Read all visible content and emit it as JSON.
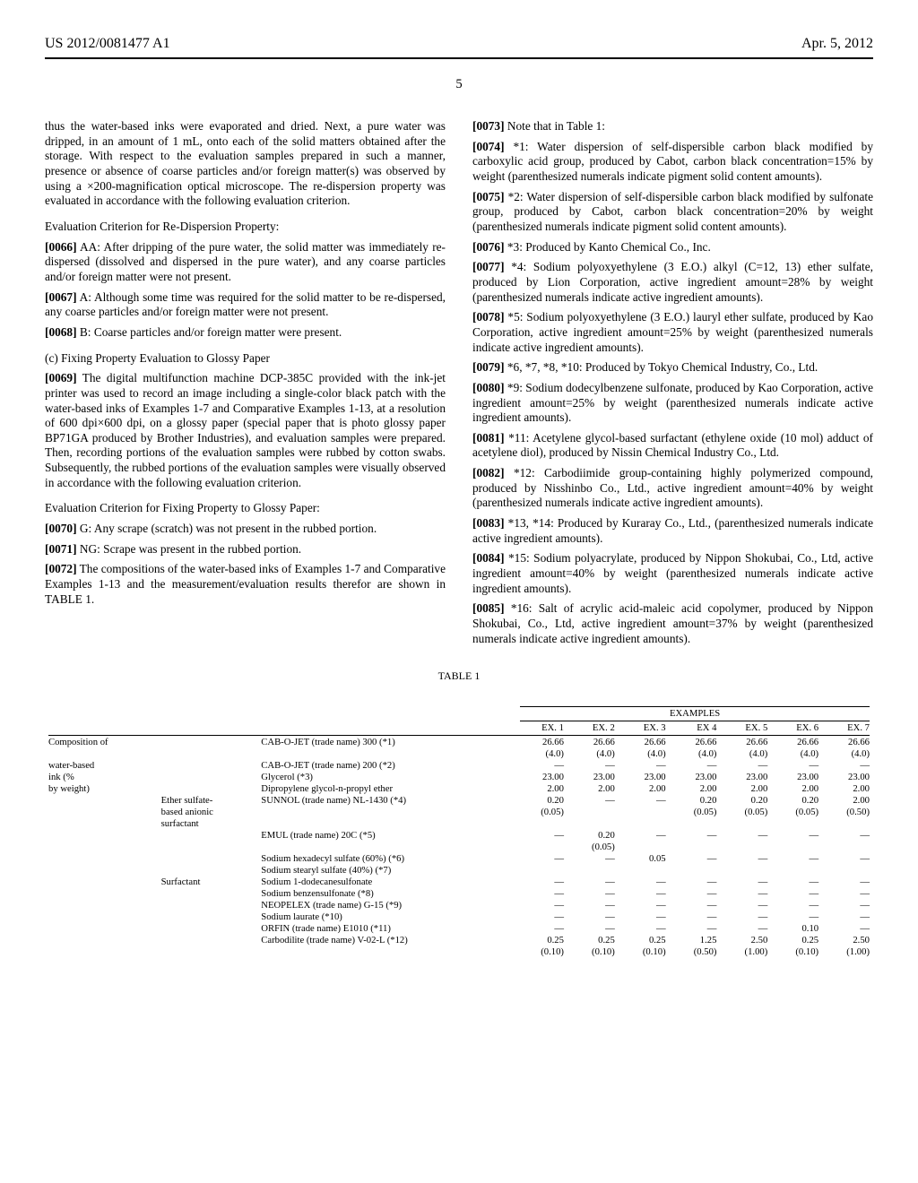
{
  "header": {
    "doc_number": "US 2012/0081477 A1",
    "date": "Apr. 5, 2012",
    "page_number": "5"
  },
  "left_col": {
    "intro": "thus the water-based inks were evaporated and dried. Next, a pure water was dripped, in an amount of 1 mL, onto each of the solid matters obtained after the storage. With respect to the evaluation samples prepared in such a manner, presence or absence of coarse particles and/or foreign matter(s) was observed by using a ×200-magnification optical microscope. The re-dispersion property was evaluated in accordance with the following evaluation criterion.",
    "h1": "Evaluation Criterion for Re-Dispersion Property:",
    "p0066_label": "[0066]",
    "p0066": "AA: After dripping of the pure water, the solid matter was immediately re-dispersed (dissolved and dispersed in the pure water), and any coarse particles and/or foreign matter were not present.",
    "p0067_label": "[0067]",
    "p0067": "A: Although some time was required for the solid matter to be re-dispersed, any coarse particles and/or foreign matter were not present.",
    "p0068_label": "[0068]",
    "p0068": "B: Coarse particles and/or foreign matter were present.",
    "h2": "(c) Fixing Property Evaluation to Glossy Paper",
    "p0069_label": "[0069]",
    "p0069": "The digital multifunction machine DCP-385C provided with the ink-jet printer was used to record an image including a single-color black patch with the water-based inks of Examples 1-7 and Comparative Examples 1-13, at a resolution of 600 dpi×600 dpi, on a glossy paper (special paper that is photo glossy paper BP71GA produced by Brother Industries), and evaluation samples were prepared. Then, recording portions of the evaluation samples were rubbed by cotton swabs. Subsequently, the rubbed portions of the evaluation samples were visually observed in accordance with the following evaluation criterion.",
    "h3": "Evaluation Criterion for Fixing Property to Glossy Paper:",
    "p0070_label": "[0070]",
    "p0070": "G: Any scrape (scratch) was not present in the rubbed portion.",
    "p0071_label": "[0071]",
    "p0071": "NG: Scrape was present in the rubbed portion.",
    "p0072_label": "[0072]",
    "p0072": "The compositions of the water-based inks of Examples 1-7 and Comparative Examples 1-13 and the measurement/evaluation results therefor are shown in TABLE 1."
  },
  "right_col": {
    "p0073_label": "[0073]",
    "p0073": "Note that in Table 1:",
    "p0074_label": "[0074]",
    "p0074": "*1: Water dispersion of self-dispersible carbon black modified by carboxylic acid group, produced by Cabot, carbon black concentration=15% by weight (parenthesized numerals indicate pigment solid content amounts).",
    "p0075_label": "[0075]",
    "p0075": "*2: Water dispersion of self-dispersible carbon black modified by sulfonate group, produced by Cabot, carbon black concentration=20% by weight (parenthesized numerals indicate pigment solid content amounts).",
    "p0076_label": "[0076]",
    "p0076": "*3: Produced by Kanto Chemical Co., Inc.",
    "p0077_label": "[0077]",
    "p0077": "*4: Sodium polyoxyethylene (3 E.O.) alkyl (C=12, 13) ether sulfate, produced by Lion Corporation, active ingredient amount=28% by weight (parenthesized numerals indicate active ingredient amounts).",
    "p0078_label": "[0078]",
    "p0078": "*5: Sodium polyoxyethylene (3 E.O.) lauryl ether sulfate, produced by Kao Corporation, active ingredient amount=25% by weight (parenthesized numerals indicate active ingredient amounts).",
    "p0079_label": "[0079]",
    "p0079": "*6, *7, *8, *10: Produced by Tokyo Chemical Industry, Co., Ltd.",
    "p0080_label": "[0080]",
    "p0080": "*9: Sodium dodecylbenzene sulfonate, produced by Kao Corporation, active ingredient amount=25% by weight (parenthesized numerals indicate active ingredient amounts).",
    "p0081_label": "[0081]",
    "p0081": "*11: Acetylene glycol-based surfactant (ethylene oxide (10 mol) adduct of acetylene diol), produced by Nissin Chemical Industry Co., Ltd.",
    "p0082_label": "[0082]",
    "p0082": "*12: Carbodiimide group-containing highly polymerized compound, produced by Nisshinbo Co., Ltd., active ingredient amount=40% by weight (parenthesized numerals indicate active ingredient amounts).",
    "p0083_label": "[0083]",
    "p0083": "*13, *14: Produced by Kuraray Co., Ltd., (parenthesized numerals indicate active ingredient amounts).",
    "p0084_label": "[0084]",
    "p0084": "*15: Sodium polyacrylate, produced by Nippon Shokubai, Co., Ltd, active ingredient amount=40% by weight (parenthesized numerals indicate active ingredient amounts).",
    "p0085_label": "[0085]",
    "p0085": "*16: Salt of acrylic acid-maleic acid copolymer, produced by Nippon Shokubai, Co., Ltd, active ingredient amount=37% by weight (parenthesized numerals indicate active ingredient amounts)."
  },
  "table": {
    "title": "TABLE 1",
    "group_header": "EXAMPLES",
    "col_headers": [
      "EX. 1",
      "EX. 2",
      "EX. 3",
      "EX 4",
      "EX. 5",
      "EX. 6",
      "EX. 7"
    ],
    "row_group_label_1": "Composition of",
    "row_group_label_2": "water-based",
    "row_group_label_3": "ink (%",
    "row_group_label_4": "by weight)",
    "rows": [
      {
        "label1": "CAB-O-JET (trade name) 300 (*1)",
        "v": [
          "26.66",
          "26.66",
          "26.66",
          "26.66",
          "26.66",
          "26.66",
          "26.66"
        ],
        "sub": [
          "(4.0)",
          "(4.0)",
          "(4.0)",
          "(4.0)",
          "(4.0)",
          "(4.0)",
          "(4.0)"
        ]
      },
      {
        "label1": "CAB-O-JET (trade name) 200 (*2)",
        "v": [
          "—",
          "—",
          "—",
          "—",
          "—",
          "—",
          "—"
        ]
      },
      {
        "label1": "Glycerol (*3)",
        "v": [
          "23.00",
          "23.00",
          "23.00",
          "23.00",
          "23.00",
          "23.00",
          "23.00"
        ]
      },
      {
        "label1": "Dipropylene glycol-n-propyl ether",
        "v": [
          "2.00",
          "2.00",
          "2.00",
          "2.00",
          "2.00",
          "2.00",
          "2.00"
        ]
      },
      {
        "cat1": "Ether sulfate-",
        "cat2": "based anionic",
        "cat3": "surfactant",
        "label1": "SUNNOL (trade name) NL-1430 (*4)",
        "v": [
          "0.20",
          "—",
          "—",
          "0.20",
          "0.20",
          "0.20",
          "2.00"
        ],
        "sub": [
          "(0.05)",
          "",
          "",
          "(0.05)",
          "(0.05)",
          "(0.05)",
          "(0.50)"
        ]
      },
      {
        "label1": "EMUL (trade name) 20C (*5)",
        "v": [
          "—",
          "0.20",
          "—",
          "—",
          "—",
          "—",
          "—"
        ],
        "sub": [
          "",
          "(0.05)",
          "",
          "",
          "",
          "",
          ""
        ]
      },
      {
        "label1": "Sodium hexadecyl sulfate (60%) (*6)",
        "v": [
          "—",
          "—",
          "0.05",
          "—",
          "—",
          "—",
          "—"
        ]
      },
      {
        "label1": "Sodium stearyl sulfate (40%) (*7)",
        "v": [
          "",
          "",
          "",
          "",
          "",
          "",
          ""
        ]
      },
      {
        "cat1": "Surfactant",
        "label1": "Sodium 1-dodecanesulfonate",
        "v": [
          "—",
          "—",
          "—",
          "—",
          "—",
          "—",
          "—"
        ]
      },
      {
        "label1": "Sodium benzensulfonate (*8)",
        "v": [
          "—",
          "—",
          "—",
          "—",
          "—",
          "—",
          "—"
        ]
      },
      {
        "label1": "NEOPELEX (trade name) G-15 (*9)",
        "v": [
          "—",
          "—",
          "—",
          "—",
          "—",
          "—",
          "—"
        ]
      },
      {
        "label1": "Sodium laurate (*10)",
        "v": [
          "—",
          "—",
          "—",
          "—",
          "—",
          "—",
          "—"
        ]
      },
      {
        "label1": "ORFIN (trade name) E1010 (*11)",
        "v": [
          "—",
          "—",
          "—",
          "—",
          "—",
          "0.10",
          "—"
        ]
      },
      {
        "label1": "Carbodilite (trade name) V-02-L (*12)",
        "v": [
          "0.25",
          "0.25",
          "0.25",
          "1.25",
          "2.50",
          "0.25",
          "2.50"
        ],
        "sub": [
          "(0.10)",
          "(0.10)",
          "(0.10)",
          "(0.50)",
          "(1.00)",
          "(0.10)",
          "(1.00)"
        ]
      }
    ]
  }
}
